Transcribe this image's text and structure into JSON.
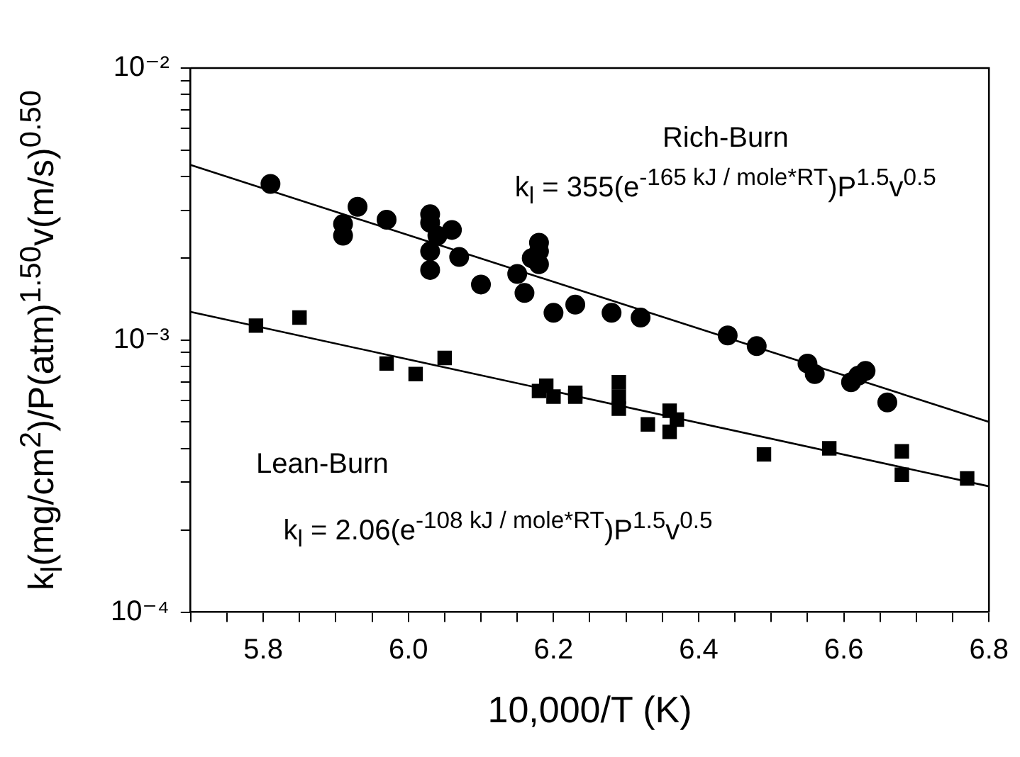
{
  "chart_data": {
    "type": "scatter",
    "xlabel": "10,000/T (K)",
    "ylabel": "k$_{l}$(mg/cm$^{2}$)/P(atm)$^{1.50}$v(m/s)$^{0.50}$",
    "log": "y",
    "grid": false,
    "legend": false,
    "xlim": [
      5.7,
      6.8
    ],
    "ylim": [
      0.0001,
      0.01
    ],
    "xticks": [
      {
        "value": 5.7,
        "label": null
      },
      {
        "value": 5.75,
        "label": null
      },
      5.8,
      {
        "value": 5.85,
        "label": null
      },
      {
        "value": 5.9,
        "label": null
      },
      {
        "value": 5.95,
        "label": null
      },
      {
        "value": 6,
        "label": "6.0"
      },
      {
        "value": 6.05,
        "label": null
      },
      {
        "value": 6.1,
        "label": null
      },
      {
        "value": 6.15,
        "label": null
      },
      6.2,
      {
        "value": 6.25,
        "label": null
      },
      {
        "value": 6.3,
        "label": null
      },
      {
        "value": 6.35,
        "label": null
      },
      6.4,
      {
        "value": 6.45,
        "label": null
      },
      {
        "value": 6.5,
        "label": null
      },
      {
        "value": 6.55,
        "label": null
      },
      6.6,
      {
        "value": 6.65,
        "label": null
      },
      {
        "value": 6.7,
        "label": null
      },
      {
        "value": 6.75,
        "label": null
      },
      6.8
    ],
    "yticks": [
      {
        "value": 0.0001,
        "label": "10⁻⁴"
      },
      {
        "value": 0.0002,
        "label": null
      },
      {
        "value": 0.0003,
        "label": null
      },
      {
        "value": 0.0004,
        "label": null
      },
      {
        "value": 0.0005,
        "label": null
      },
      {
        "value": 0.0006,
        "label": null
      },
      {
        "value": 0.0007,
        "label": null
      },
      {
        "value": 0.0008,
        "label": null
      },
      {
        "value": 0.0009,
        "label": null
      },
      {
        "value": 0.001,
        "label": "10⁻³"
      },
      {
        "value": 0.002,
        "label": null
      },
      {
        "value": 0.003,
        "label": null
      },
      {
        "value": 0.004,
        "label": null
      },
      {
        "value": 0.005,
        "label": null
      },
      {
        "value": 0.006,
        "label": null
      },
      {
        "value": 0.007,
        "label": null
      },
      {
        "value": 0.008,
        "label": null
      },
      {
        "value": 0.009,
        "label": null
      },
      {
        "value": 0.01,
        "label": "10⁻²"
      }
    ],
    "series": [
      {
        "marker": "circle",
        "color": "#000000",
        "x": [
          5.81,
          5.91,
          5.91,
          5.93,
          5.97,
          6.03,
          6.03,
          6.03,
          6.03,
          6.04,
          6.06,
          6.07,
          6.1,
          6.15,
          6.16,
          6.17,
          6.18,
          6.18,
          6.18,
          6.2,
          6.23,
          6.28,
          6.32,
          6.44,
          6.48,
          6.55,
          6.56,
          6.61,
          6.62,
          6.63,
          6.66
        ],
        "values": [
          0.00375,
          0.00242,
          0.00267,
          0.00309,
          0.00277,
          0.0029,
          0.0027,
          0.00212,
          0.00181,
          0.00242,
          0.00254,
          0.00202,
          0.0016,
          0.00175,
          0.00149,
          0.002,
          0.00228,
          0.00212,
          0.0019,
          0.00126,
          0.00135,
          0.00126,
          0.00121,
          0.00104,
          0.00095,
          0.00082,
          0.00075,
          0.0007,
          0.00074,
          0.00077,
          0.00059
        ]
      },
      {
        "marker": "square",
        "color": "#000000",
        "x": [
          5.79,
          5.85,
          5.97,
          6.01,
          6.05,
          6.18,
          6.19,
          6.2,
          6.23,
          6.23,
          6.29,
          6.29,
          6.29,
          6.33,
          6.36,
          6.37,
          6.36,
          6.49,
          6.58,
          6.68,
          6.68,
          6.77
        ],
        "values": [
          0.00113,
          0.00121,
          0.00082,
          0.00075,
          0.00086,
          0.00065,
          0.00068,
          0.00062,
          0.00062,
          0.00064,
          0.0007,
          0.00062,
          0.00056,
          0.00049,
          0.00055,
          0.00051,
          0.00046,
          0.00038,
          0.0004,
          0.00039,
          0.00032,
          0.00031
        ]
      },
      {
        "type": "line",
        "marker": "none",
        "color": "#000000",
        "x": [
          5.7,
          6.8
        ],
        "values": [
          0.0044,
          0.0005
        ]
      },
      {
        "type": "line",
        "marker": "none",
        "color": "#000000",
        "x": [
          5.7,
          6.8
        ],
        "values": [
          0.00127,
          0.00029
        ]
      }
    ],
    "annotations": [
      "Rich-Burn",
      "k$_{l}$ = 355(e$^{-165 kJ / mole*RT}$)P$^{1.5}$v$^{0.5}$",
      "Lean-Burn",
      "k$_{l}$ = 2.06(e$^{-108 kJ / mole*RT}$)P$^{1.5}$v$^{0.5}$"
    ]
  }
}
